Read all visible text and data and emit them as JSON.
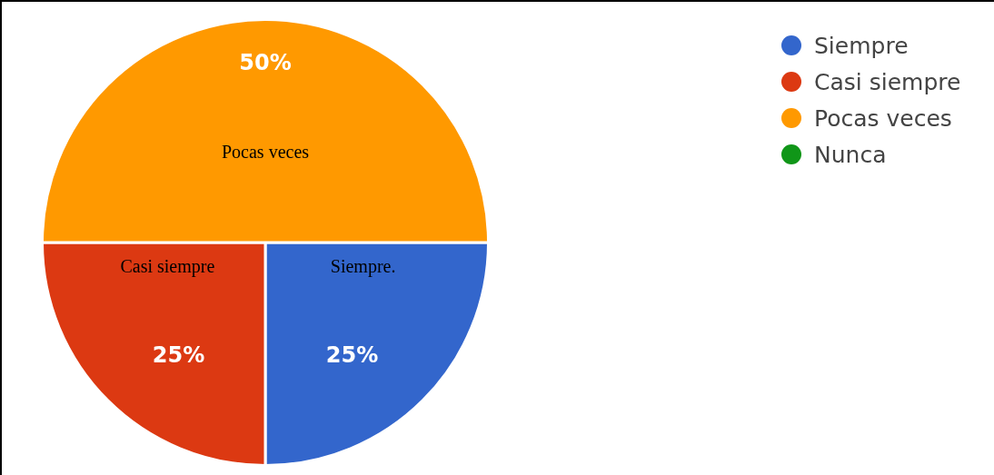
{
  "chart_data": {
    "type": "pie",
    "categories": [
      "Siempre",
      "Casi siempre",
      "Pocas veces",
      "Nunca"
    ],
    "values": [
      25,
      25,
      50,
      0
    ],
    "colors": [
      "#3366cc",
      "#dc3912",
      "#ff9900",
      "#109618"
    ],
    "value_labels": [
      "25%",
      "25%",
      "50%",
      null
    ],
    "legend": "top right",
    "annotations": [
      {
        "text": "Pocas veces",
        "x": "Pocas veces"
      },
      {
        "text": "Casi siempre",
        "x": "Casi siempre"
      },
      {
        "text": "Siempre.",
        "x": "Siempre"
      }
    ]
  }
}
